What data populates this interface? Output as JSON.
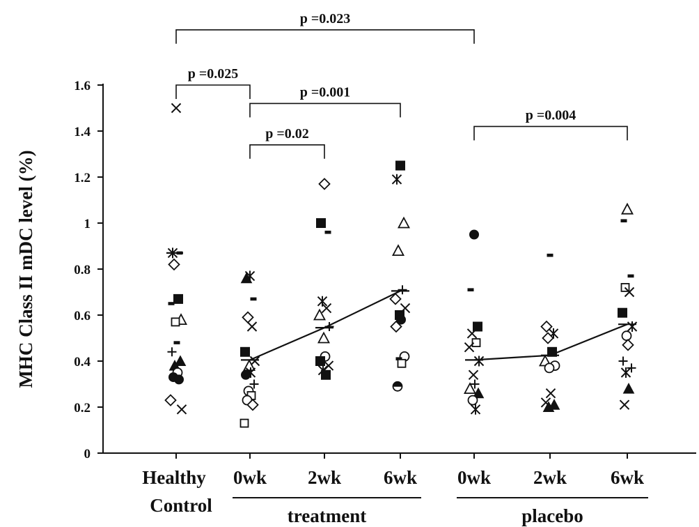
{
  "chart_data": {
    "type": "scatter",
    "ylabel": "MHC Class II mDC level (%)",
    "ylim": [
      0,
      1.6
    ],
    "yticks": [
      "0",
      "0.2",
      "0.4",
      "0.6",
      "0.8",
      "1",
      "1.2",
      "1.4",
      "1.6"
    ],
    "grid": false,
    "categories": [
      {
        "label": "Healthy",
        "label2": "Control"
      },
      {
        "label": "0wk"
      },
      {
        "label": "2wk"
      },
      {
        "label": "6wk"
      },
      {
        "label": "0wk"
      },
      {
        "label": "2wk"
      },
      {
        "label": "6wk"
      }
    ],
    "groups": [
      {
        "label": "treatment",
        "from": 1,
        "to": 3
      },
      {
        "label": "placebo",
        "from": 4,
        "to": 6
      }
    ],
    "points": [
      [
        {
          "y": 1.5,
          "m": "x"
        },
        {
          "y": 0.87,
          "m": "star"
        },
        {
          "y": 0.87,
          "m": "dash"
        },
        {
          "y": 0.82,
          "m": "diamond"
        },
        {
          "y": 0.67,
          "m": "square"
        },
        {
          "y": 0.65,
          "m": "dash"
        },
        {
          "y": 0.58,
          "m": "triangle"
        },
        {
          "y": 0.57,
          "m": "square-open"
        },
        {
          "y": 0.48,
          "m": "dash"
        },
        {
          "y": 0.44,
          "m": "plus"
        },
        {
          "y": 0.4,
          "m": "triangle-filled"
        },
        {
          "y": 0.38,
          "m": "triangle-filled"
        },
        {
          "y": 0.35,
          "m": "circle"
        },
        {
          "y": 0.33,
          "m": "circle-filled"
        },
        {
          "y": 0.32,
          "m": "circle-filled"
        },
        {
          "y": 0.23,
          "m": "diamond"
        },
        {
          "y": 0.19,
          "m": "x"
        }
      ],
      [
        {
          "y": 0.77,
          "m": "star"
        },
        {
          "y": 0.76,
          "m": "triangle-filled"
        },
        {
          "y": 0.67,
          "m": "dash"
        },
        {
          "y": 0.59,
          "m": "diamond"
        },
        {
          "y": 0.55,
          "m": "x"
        },
        {
          "y": 0.44,
          "m": "square"
        },
        {
          "y": 0.4,
          "m": "x"
        },
        {
          "y": 0.38,
          "m": "triangle"
        },
        {
          "y": 0.35,
          "m": "star"
        },
        {
          "y": 0.34,
          "m": "circle-filled"
        },
        {
          "y": 0.3,
          "m": "plus"
        },
        {
          "y": 0.27,
          "m": "circle"
        },
        {
          "y": 0.25,
          "m": "square-open"
        },
        {
          "y": 0.23,
          "m": "circle"
        },
        {
          "y": 0.21,
          "m": "diamond"
        },
        {
          "y": 0.13,
          "m": "square-open"
        }
      ],
      [
        {
          "y": 1.17,
          "m": "diamond"
        },
        {
          "y": 1.0,
          "m": "square"
        },
        {
          "y": 0.96,
          "m": "dash"
        },
        {
          "y": 0.66,
          "m": "star"
        },
        {
          "y": 0.63,
          "m": "x"
        },
        {
          "y": 0.6,
          "m": "triangle"
        },
        {
          "y": 0.55,
          "m": "plus"
        },
        {
          "y": 0.5,
          "m": "triangle"
        },
        {
          "y": 0.42,
          "m": "circle"
        },
        {
          "y": 0.4,
          "m": "square"
        },
        {
          "y": 0.38,
          "m": "x"
        },
        {
          "y": 0.36,
          "m": "star"
        },
        {
          "y": 0.34,
          "m": "square"
        }
      ],
      [
        {
          "y": 1.25,
          "m": "square"
        },
        {
          "y": 1.19,
          "m": "star"
        },
        {
          "y": 1.0,
          "m": "triangle"
        },
        {
          "y": 0.88,
          "m": "triangle"
        },
        {
          "y": 0.71,
          "m": "plus"
        },
        {
          "y": 0.67,
          "m": "diamond"
        },
        {
          "y": 0.63,
          "m": "x"
        },
        {
          "y": 0.6,
          "m": "square"
        },
        {
          "y": 0.58,
          "m": "circle-filled"
        },
        {
          "y": 0.55,
          "m": "diamond"
        },
        {
          "y": 0.42,
          "m": "circle"
        },
        {
          "y": 0.41,
          "m": "dash"
        },
        {
          "y": 0.39,
          "m": "square-open"
        },
        {
          "y": 0.29,
          "m": "circle-half"
        }
      ],
      [
        {
          "y": 0.95,
          "m": "circle-filled"
        },
        {
          "y": 0.71,
          "m": "dash"
        },
        {
          "y": 0.55,
          "m": "square"
        },
        {
          "y": 0.52,
          "m": "x"
        },
        {
          "y": 0.48,
          "m": "square-open"
        },
        {
          "y": 0.46,
          "m": "x"
        },
        {
          "y": 0.4,
          "m": "star"
        },
        {
          "y": 0.34,
          "m": "x"
        },
        {
          "y": 0.3,
          "m": "plus"
        },
        {
          "y": 0.28,
          "m": "triangle"
        },
        {
          "y": 0.26,
          "m": "triangle-filled"
        },
        {
          "y": 0.23,
          "m": "circle"
        },
        {
          "y": 0.19,
          "m": "star"
        }
      ],
      [
        {
          "y": 0.86,
          "m": "dash"
        },
        {
          "y": 0.55,
          "m": "diamond"
        },
        {
          "y": 0.52,
          "m": "star"
        },
        {
          "y": 0.5,
          "m": "diamond"
        },
        {
          "y": 0.44,
          "m": "square"
        },
        {
          "y": 0.4,
          "m": "triangle"
        },
        {
          "y": 0.38,
          "m": "circle"
        },
        {
          "y": 0.37,
          "m": "circle"
        },
        {
          "y": 0.26,
          "m": "x"
        },
        {
          "y": 0.22,
          "m": "x"
        },
        {
          "y": 0.21,
          "m": "triangle-filled"
        },
        {
          "y": 0.2,
          "m": "triangle-filled"
        }
      ],
      [
        {
          "y": 1.06,
          "m": "triangle"
        },
        {
          "y": 1.01,
          "m": "dash"
        },
        {
          "y": 0.77,
          "m": "dash"
        },
        {
          "y": 0.72,
          "m": "square-open"
        },
        {
          "y": 0.7,
          "m": "x"
        },
        {
          "y": 0.61,
          "m": "square"
        },
        {
          "y": 0.55,
          "m": "star"
        },
        {
          "y": 0.51,
          "m": "circle"
        },
        {
          "y": 0.47,
          "m": "diamond"
        },
        {
          "y": 0.4,
          "m": "plus"
        },
        {
          "y": 0.37,
          "m": "plus"
        },
        {
          "y": 0.35,
          "m": "star"
        },
        {
          "y": 0.28,
          "m": "triangle-filled"
        },
        {
          "y": 0.21,
          "m": "x"
        }
      ]
    ],
    "means": [
      {
        "category": 1,
        "value": 0.405
      },
      {
        "category": 2,
        "value": 0.545
      },
      {
        "category": 3,
        "value": 0.705
      },
      {
        "category": 4,
        "value": 0.405
      },
      {
        "category": 5,
        "value": 0.425
      },
      {
        "category": 6,
        "value": 0.56
      }
    ],
    "mean_lines": [
      [
        1,
        2,
        3
      ],
      [
        4,
        5,
        6
      ]
    ],
    "healthy_mean": {
      "category": 0,
      "value": 0.87
    },
    "comparisons": [
      {
        "label": "p =0.023",
        "from": 0,
        "to": 4,
        "level": 1.84
      },
      {
        "label": "p =0.025",
        "from": 0,
        "to": 1,
        "level": 1.6
      },
      {
        "label": "p =0.001",
        "from": 1,
        "to": 3,
        "level": 1.52
      },
      {
        "label": "p =0.02",
        "from": 1,
        "to": 2,
        "level": 1.34
      },
      {
        "label": "p =0.004",
        "from": 4,
        "to": 6,
        "level": 1.42
      }
    ]
  }
}
